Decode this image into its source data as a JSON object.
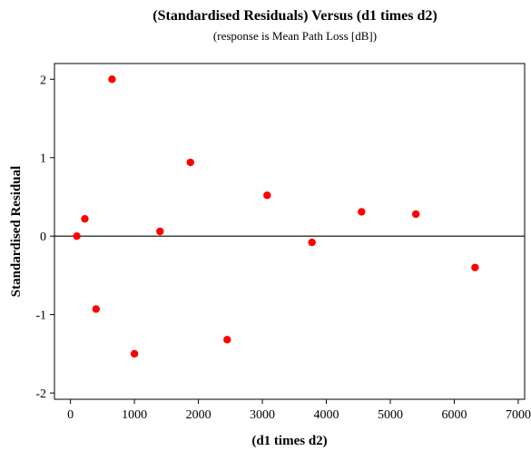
{
  "chart_data": {
    "type": "scatter",
    "title": "(Standardised Residuals) Versus (d1 times d2)",
    "subtitle": "(response is Mean Path Loss [dB])",
    "xlabel": "(d1 times d2)",
    "ylabel": "Standardised Residual",
    "xlim": [
      -250,
      7100
    ],
    "ylim": [
      -2.08,
      2.2
    ],
    "xticks": [
      0,
      1000,
      2000,
      3000,
      4000,
      5000,
      6000,
      7000
    ],
    "yticks": [
      -2,
      -1,
      0,
      1,
      2
    ],
    "reference_line_y": 0,
    "grid": false,
    "marker_color": "#ff0000",
    "series": [
      {
        "x": [
          100,
          225,
          400,
          650,
          1000,
          1400,
          1875,
          2450,
          3075,
          3775,
          4550,
          5400,
          6325
        ],
        "y": [
          0.0,
          0.22,
          -0.93,
          2.0,
          -1.5,
          0.06,
          0.94,
          -1.32,
          0.52,
          -0.08,
          0.31,
          0.28,
          -0.4
        ]
      }
    ]
  }
}
